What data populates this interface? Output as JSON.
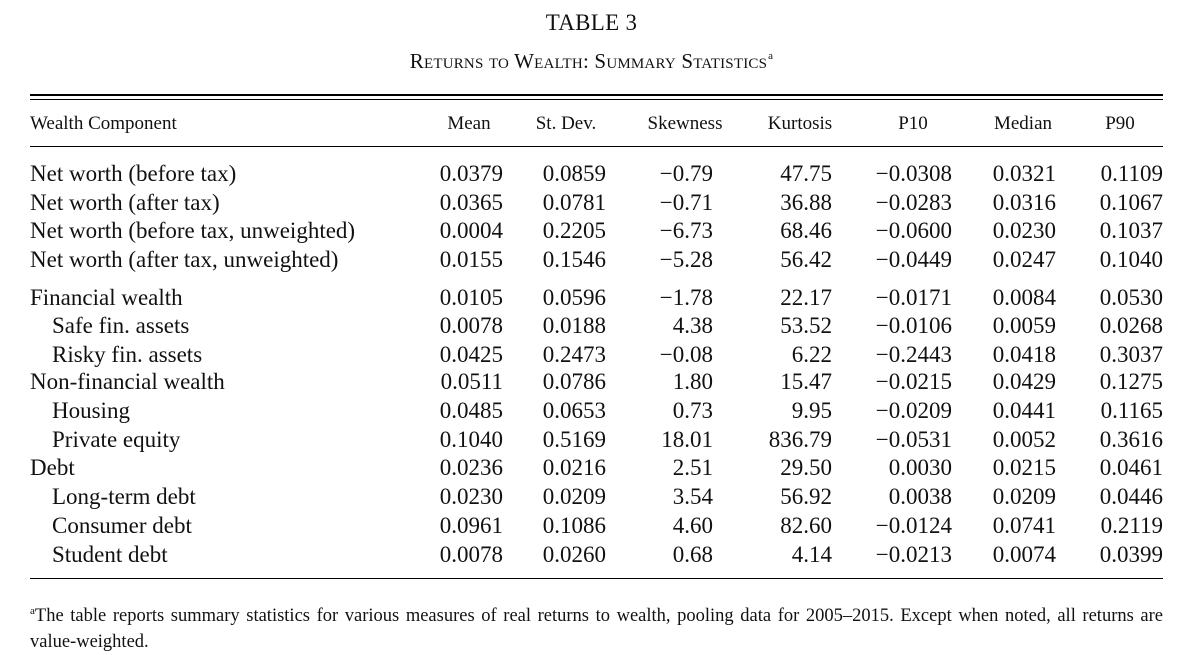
{
  "table_title": "TABLE 3",
  "table_subtitle": "Returns to Wealth: Summary Statistics",
  "subtitle_marker": "a",
  "headers": [
    "Wealth Component",
    "Mean",
    "St. Dev.",
    "Skewness",
    "Kurtosis",
    "P10",
    "Median",
    "P90"
  ],
  "rows": [
    {
      "label": "Net worth (before tax)",
      "indent": false,
      "values": [
        "0.0379",
        "0.0859",
        "−0.79",
        "47.75",
        "−0.0308",
        "0.0321",
        "0.1109"
      ]
    },
    {
      "label": "Net worth (after tax)",
      "indent": false,
      "values": [
        "0.0365",
        "0.0781",
        "−0.71",
        "36.88",
        "−0.0283",
        "0.0316",
        "0.1067"
      ]
    },
    {
      "label": "Net worth (before tax, unweighted)",
      "indent": false,
      "values": [
        "0.0004",
        "0.2205",
        "−6.73",
        "68.46",
        "−0.0600",
        "0.0230",
        "0.1037"
      ]
    },
    {
      "label": "Net worth (after tax, unweighted)",
      "indent": false,
      "values": [
        "0.0155",
        "0.1546",
        "−5.28",
        "56.42",
        "−0.0449",
        "0.0247",
        "0.1040"
      ]
    },
    {
      "label": "Financial wealth",
      "indent": false,
      "values": [
        "0.0105",
        "0.0596",
        "−1.78",
        "22.17",
        "−0.0171",
        "0.0084",
        "0.0530"
      ]
    },
    {
      "label": "Safe fin. assets",
      "indent": true,
      "values": [
        "0.0078",
        "0.0188",
        "4.38",
        "53.52",
        "−0.0106",
        "0.0059",
        "0.0268"
      ]
    },
    {
      "label": "Risky fin. assets",
      "indent": true,
      "values": [
        "0.0425",
        "0.2473",
        "−0.08",
        "6.22",
        "−0.2443",
        "0.0418",
        "0.3037"
      ]
    },
    {
      "label": "Non-financial wealth",
      "indent": false,
      "values": [
        "0.0511",
        "0.0786",
        "1.80",
        "15.47",
        "−0.0215",
        "0.0429",
        "0.1275"
      ]
    },
    {
      "label": "Housing",
      "indent": true,
      "values": [
        "0.0485",
        "0.0653",
        "0.73",
        "9.95",
        "−0.0209",
        "0.0441",
        "0.1165"
      ]
    },
    {
      "label": "Private equity",
      "indent": true,
      "values": [
        "0.1040",
        "0.5169",
        "18.01",
        "836.79",
        "−0.0531",
        "0.0052",
        "0.3616"
      ]
    },
    {
      "label": "Debt",
      "indent": false,
      "values": [
        "0.0236",
        "0.0216",
        "2.51",
        "29.50",
        "0.0030",
        "0.0215",
        "0.0461"
      ]
    },
    {
      "label": "Long-term debt",
      "indent": true,
      "values": [
        "0.0230",
        "0.0209",
        "3.54",
        "56.92",
        "0.0038",
        "0.0209",
        "0.0446"
      ]
    },
    {
      "label": "Consumer debt",
      "indent": true,
      "values": [
        "0.0961",
        "0.1086",
        "4.60",
        "82.60",
        "−0.0124",
        "0.0741",
        "0.2119"
      ]
    },
    {
      "label": "Student debt",
      "indent": true,
      "values": [
        "0.0078",
        "0.0260",
        "0.68",
        "4.14",
        "−0.0213",
        "0.0074",
        "0.0399"
      ]
    }
  ],
  "footnote_marker": "a",
  "footnote_text": "The table reports summary statistics for various measures of real returns to wealth, pooling data for 2005–2015. Except when noted, all returns are value-weighted."
}
